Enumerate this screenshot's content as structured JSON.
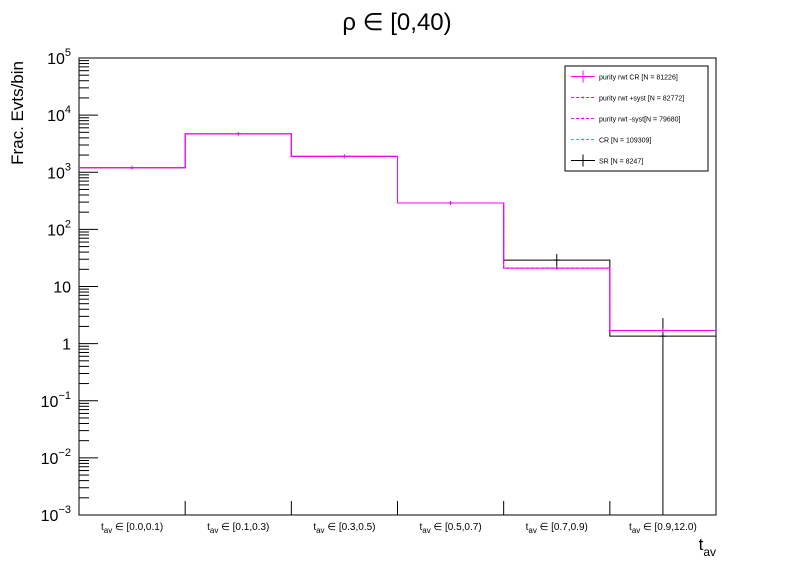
{
  "chart_data": {
    "type": "step-histogram",
    "title": "ρ ∈ [0,40)",
    "ylabel": "Frac. Evts/bin",
    "xlabel": {
      "main": "t",
      "sub": "av"
    },
    "yscale": "log",
    "ylim": [
      0.001,
      100000
    ],
    "y_ticks": [
      {
        "v": 0.001,
        "base": "10",
        "exp": "−3"
      },
      {
        "v": 0.01,
        "base": "10",
        "exp": "−2"
      },
      {
        "v": 0.1,
        "base": "10",
        "exp": "−1"
      },
      {
        "v": 1,
        "base": "1",
        "exp": ""
      },
      {
        "v": 10,
        "base": "10",
        "exp": ""
      },
      {
        "v": 100,
        "base": "10",
        "exp": "2"
      },
      {
        "v": 1000,
        "base": "10",
        "exp": "3"
      },
      {
        "v": 10000,
        "base": "10",
        "exp": "4"
      },
      {
        "v": 100000,
        "base": "10",
        "exp": "5"
      }
    ],
    "categories": [
      {
        "pre": "t",
        "sub": "av",
        "post": " ∈ [0.0,0.1)"
      },
      {
        "pre": "t",
        "sub": "av",
        "post": " ∈ [0.1,0.3)"
      },
      {
        "pre": "t",
        "sub": "av",
        "post": " ∈ [0.3,0.5)"
      },
      {
        "pre": "t",
        "sub": "av",
        "post": " ∈ [0.5,0.7)"
      },
      {
        "pre": "t",
        "sub": "av",
        "post": " ∈ [0.7,0.9)"
      },
      {
        "pre": "t",
        "sub": "av",
        "post": " ∈ [0.9,12.0)"
      }
    ],
    "legend_position": "top-right",
    "series": [
      {
        "name": "purity rwt CR [N = 81226]",
        "color": "#ff00ff",
        "style": "solid",
        "marker": "errorbar",
        "values": [
          1200,
          4700,
          1900,
          290,
          21,
          1.7
        ]
      },
      {
        "name": "purity rwt +syst [N = 82772]",
        "color": "#ff00ff",
        "style": "dashed",
        "marker": "dot",
        "values": [
          1200,
          4700,
          1900,
          290,
          21,
          1.7
        ]
      },
      {
        "name": "purity rwt -syst[N = 79680]",
        "color": "#ff00ff",
        "style": "dashed",
        "marker": "dot",
        "values": [
          1200,
          4700,
          1900,
          290,
          21,
          1.7
        ]
      },
      {
        "name": "CR [N = 109309]",
        "color": "#00cccc",
        "style": "dashed",
        "marker": "dot",
        "values": [
          1200,
          4700,
          1900,
          290,
          21,
          1.7
        ]
      },
      {
        "name": "SR [N = 8247]",
        "color": "#000000",
        "style": "solid",
        "marker": "errorbar",
        "values": [
          1200,
          4700,
          1900,
          290,
          29,
          1.35
        ],
        "err_low": [
          1150,
          4600,
          1850,
          270,
          21,
          0.001
        ],
        "err_high": [
          1250,
          4800,
          1950,
          310,
          37,
          2.8
        ]
      }
    ]
  }
}
